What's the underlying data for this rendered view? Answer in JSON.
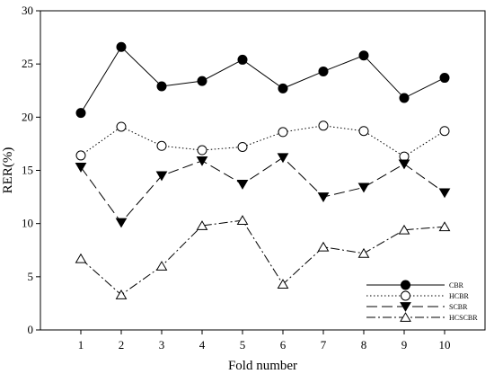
{
  "chart_data": {
    "type": "line",
    "title": "",
    "xlabel": "Fold number",
    "ylabel": "RER(%)",
    "x": [
      1,
      2,
      3,
      4,
      5,
      6,
      7,
      8,
      9,
      10
    ],
    "xlim": [
      0,
      11
    ],
    "ylim": [
      0,
      30
    ],
    "yticks": [
      0,
      5,
      10,
      15,
      20,
      25,
      30
    ],
    "grid": false,
    "legend_position": "bottom-right",
    "series": [
      {
        "name": "CBR",
        "values": [
          20.4,
          26.6,
          22.9,
          23.4,
          25.4,
          22.7,
          24.3,
          25.8,
          21.8,
          23.7
        ],
        "marker": "filled-circle",
        "line_style": "solid",
        "color": "#000000"
      },
      {
        "name": "HCBR",
        "values": [
          16.4,
          19.1,
          17.3,
          16.9,
          17.2,
          18.6,
          19.2,
          18.7,
          16.3,
          18.7
        ],
        "marker": "open-circle",
        "line_style": "dotted",
        "color": "#000000"
      },
      {
        "name": "SCBR",
        "values": [
          15.3,
          10.1,
          14.5,
          15.9,
          13.7,
          16.2,
          12.5,
          13.4,
          15.6,
          12.9
        ],
        "marker": "filled-triangle-down",
        "line_style": "dashed",
        "color": "#000000"
      },
      {
        "name": "HCSCBR",
        "values": [
          6.7,
          3.3,
          6.0,
          9.8,
          10.3,
          4.3,
          7.8,
          7.2,
          9.4,
          9.7
        ],
        "marker": "open-triangle-up",
        "line_style": "dash-dot",
        "color": "#000000"
      }
    ]
  }
}
